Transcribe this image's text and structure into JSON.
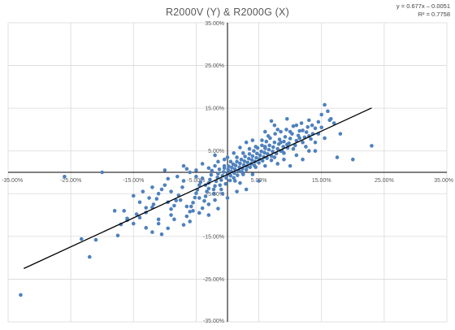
{
  "chart_data": {
    "type": "scatter",
    "title": "R2000V (Y) & R2000G (X)",
    "xlabel": "",
    "ylabel": "",
    "xlim": [
      -0.35,
      0.35
    ],
    "ylim": [
      -0.35,
      0.35
    ],
    "x_ticks": [
      -0.35,
      -0.25,
      -0.15,
      -0.05,
      0.05,
      0.15,
      0.25,
      0.35
    ],
    "x_tick_labels": [
      "-35.00%",
      "-25.00%",
      "-15.00%",
      "-5.00%",
      "5.00%",
      "15.00%",
      "25.00%",
      "35.00%"
    ],
    "y_ticks": [
      0.35,
      0.25,
      0.15,
      0.05,
      -0.05,
      -0.15,
      -0.25,
      -0.35
    ],
    "y_tick_labels": [
      "35.00%",
      "25.00%",
      "15.00%",
      "5.00%",
      "-5.00%",
      "-15.00%",
      "-25.00%",
      "-35.00%"
    ],
    "grid": true,
    "legend": "none",
    "marker_color": "#4F81BD",
    "trendline": {
      "type": "linear",
      "slope": 0.677,
      "intercept": -0.0051,
      "r_squared": 0.7758,
      "color": "#000000",
      "x_range": [
        -0.325,
        0.23
      ]
    },
    "trendline_equation": "y = 0.677x – 0.0051",
    "trendline_r2_label": "R² = 0.7758",
    "series": [
      {
        "points": [
          [
            -0.33,
            -0.287
          ],
          [
            -0.22,
            -0.198
          ],
          [
            -0.233,
            -0.156
          ],
          [
            -0.21,
            -0.158
          ],
          [
            -0.175,
            -0.148
          ],
          [
            -0.17,
            -0.122
          ],
          [
            -0.16,
            -0.112
          ],
          [
            -0.16,
            -0.108
          ],
          [
            -0.145,
            -0.098
          ],
          [
            -0.14,
            -0.106
          ],
          [
            -0.13,
            -0.094
          ],
          [
            -0.13,
            -0.083
          ],
          [
            -0.12,
            -0.082
          ],
          [
            -0.118,
            -0.075
          ],
          [
            -0.113,
            -0.062
          ],
          [
            -0.11,
            -0.11
          ],
          [
            -0.105,
            -0.145
          ],
          [
            -0.095,
            -0.131
          ],
          [
            -0.09,
            -0.086
          ],
          [
            -0.085,
            -0.078
          ],
          [
            -0.082,
            -0.066
          ],
          [
            -0.078,
            -0.054
          ],
          [
            -0.072,
            -0.035
          ],
          [
            -0.07,
            -0.123
          ],
          [
            -0.065,
            -0.103
          ],
          [
            -0.06,
            -0.092
          ],
          [
            -0.058,
            -0.08
          ],
          [
            -0.055,
            -0.071
          ],
          [
            -0.052,
            -0.059
          ],
          [
            -0.05,
            -0.049
          ],
          [
            -0.048,
            -0.041
          ],
          [
            -0.045,
            -0.03
          ],
          [
            -0.043,
            -0.023
          ],
          [
            -0.04,
            -0.014
          ],
          [
            -0.04,
            -0.084
          ],
          [
            -0.037,
            -0.067
          ],
          [
            -0.035,
            -0.056
          ],
          [
            -0.033,
            -0.045
          ],
          [
            -0.03,
            -0.038
          ],
          [
            -0.03,
            -0.025
          ],
          [
            -0.028,
            -0.017
          ],
          [
            -0.026,
            -0.006
          ],
          [
            -0.025,
            0.004
          ],
          [
            -0.022,
            -0.05
          ],
          [
            -0.02,
            -0.032
          ],
          [
            -0.018,
            -0.021
          ],
          [
            -0.016,
            -0.012
          ],
          [
            -0.015,
            -0.003
          ],
          [
            -0.013,
            0.007
          ],
          [
            -0.01,
            -0.04
          ],
          [
            -0.01,
            -0.018
          ],
          [
            -0.008,
            -0.008
          ],
          [
            -0.006,
            0.001
          ],
          [
            -0.005,
            0.01
          ],
          [
            -0.003,
            -0.027
          ],
          [
            -0.002,
            -0.013
          ],
          [
            0.0,
            -0.004
          ],
          [
            0.001,
            0.006
          ],
          [
            0.002,
            0.014
          ],
          [
            0.004,
            -0.019
          ],
          [
            0.005,
            -0.008
          ],
          [
            0.006,
            0.002
          ],
          [
            0.007,
            0.011
          ],
          [
            0.009,
            0.019
          ],
          [
            0.01,
            -0.013
          ],
          [
            0.011,
            -0.002
          ],
          [
            0.012,
            0.007
          ],
          [
            0.013,
            0.016
          ],
          [
            0.015,
            0.025
          ],
          [
            0.016,
            -0.007
          ],
          [
            0.018,
            0.004
          ],
          [
            0.019,
            0.012
          ],
          [
            0.02,
            0.021
          ],
          [
            0.022,
            0.03
          ],
          [
            0.023,
            0.001
          ],
          [
            0.024,
            0.009
          ],
          [
            0.026,
            0.017
          ],
          [
            0.027,
            0.026
          ],
          [
            0.028,
            0.037
          ],
          [
            0.03,
            0.006
          ],
          [
            0.031,
            0.014
          ],
          [
            0.032,
            0.023
          ],
          [
            0.034,
            0.032
          ],
          [
            0.035,
            0.043
          ],
          [
            0.036,
            0.012
          ],
          [
            0.038,
            0.02
          ],
          [
            0.039,
            0.029
          ],
          [
            0.04,
            0.038
          ],
          [
            0.042,
            0.05
          ],
          [
            0.043,
            0.016
          ],
          [
            0.044,
            0.025
          ],
          [
            0.046,
            0.034
          ],
          [
            0.047,
            0.044
          ],
          [
            0.048,
            0.057
          ],
          [
            0.05,
            0.022
          ],
          [
            0.051,
            0.031
          ],
          [
            0.052,
            0.04
          ],
          [
            0.054,
            0.049
          ],
          [
            0.055,
            0.063
          ],
          [
            0.056,
            0.027
          ],
          [
            0.058,
            0.036
          ],
          [
            0.059,
            0.046
          ],
          [
            0.06,
            0.056
          ],
          [
            0.062,
            0.072
          ],
          [
            0.063,
            0.033
          ],
          [
            0.064,
            0.043
          ],
          [
            0.066,
            0.053
          ],
          [
            0.067,
            0.063
          ],
          [
            0.068,
            0.08
          ],
          [
            0.07,
            0.038
          ],
          [
            0.072,
            0.049
          ],
          [
            0.073,
            0.059
          ],
          [
            0.075,
            0.07
          ],
          [
            0.076,
            0.09
          ],
          [
            0.078,
            0.044
          ],
          [
            0.08,
            0.055
          ],
          [
            0.082,
            0.066
          ],
          [
            0.083,
            0.077
          ],
          [
            0.085,
            0.095
          ],
          [
            0.087,
            0.05
          ],
          [
            0.089,
            0.06
          ],
          [
            0.09,
            0.072
          ],
          [
            0.092,
            0.083
          ],
          [
            0.094,
            0.1
          ],
          [
            0.096,
            0.057
          ],
          [
            0.098,
            0.068
          ],
          [
            0.1,
            0.079
          ],
          [
            0.103,
            0.09
          ],
          [
            0.105,
            0.108
          ],
          [
            0.108,
            0.063
          ],
          [
            0.11,
            0.074
          ],
          [
            0.113,
            0.086
          ],
          [
            0.115,
            0.097
          ],
          [
            0.118,
            0.115
          ],
          [
            0.12,
            0.07
          ],
          [
            0.123,
            0.082
          ],
          [
            0.126,
            0.094
          ],
          [
            0.128,
            0.106
          ],
          [
            0.13,
            0.122
          ],
          [
            0.133,
            0.078
          ],
          [
            0.136,
            0.09
          ],
          [
            0.14,
            0.103
          ],
          [
            0.145,
            0.118
          ],
          [
            0.15,
            0.135
          ],
          [
            0.155,
            0.158
          ],
          [
            0.16,
            0.143
          ],
          [
            0.163,
            0.122
          ],
          [
            0.17,
            0.115
          ],
          [
            0.175,
            0.035
          ],
          [
            0.2,
            0.03
          ],
          [
            0.23,
            0.062
          ],
          [
            0.12,
            0.03
          ],
          [
            0.1,
            0.015
          ],
          [
            0.13,
            0.05
          ],
          [
            0.08,
            0.1
          ],
          [
            0.07,
            0.12
          ],
          [
            0.06,
            0.095
          ],
          [
            0.04,
            0.075
          ],
          [
            0.03,
            0.07
          ],
          [
            0.02,
            0.058
          ],
          [
            0.01,
            0.045
          ],
          [
            0.0,
            0.035
          ],
          [
            -0.005,
            0.03
          ],
          [
            -0.015,
            0.025
          ],
          [
            -0.02,
            0.015
          ],
          [
            -0.03,
            0.01
          ],
          [
            -0.05,
            -0.01
          ],
          [
            -0.06,
            0.0
          ],
          [
            -0.07,
            -0.02
          ],
          [
            -0.09,
            -0.045
          ],
          [
            -0.1,
            -0.03
          ],
          [
            -0.11,
            -0.05
          ],
          [
            -0.125,
            -0.06
          ],
          [
            -0.14,
            -0.07
          ],
          [
            -0.1,
            0.005
          ],
          [
            -0.07,
            0.015
          ],
          [
            -0.04,
            0.02
          ],
          [
            -0.11,
            -0.12
          ],
          [
            -0.09,
            -0.1
          ],
          [
            -0.2,
            0.0
          ],
          [
            -0.26,
            -0.01
          ],
          [
            -0.18,
            -0.09
          ],
          [
            0.03,
            -0.04
          ],
          [
            0.05,
            -0.02
          ],
          [
            0.08,
            0.02
          ],
          [
            0.09,
            0.03
          ],
          [
            0.11,
            0.04
          ],
          [
            0.14,
            0.07
          ],
          [
            0.145,
            0.09
          ],
          [
            0.11,
            0.11
          ],
          [
            0.095,
            0.125
          ],
          [
            0.075,
            0.11
          ],
          [
            0.06,
            0.06
          ],
          [
            0.045,
            0.06
          ],
          [
            0.025,
            0.045
          ],
          [
            0.015,
            0.035
          ],
          [
            0.005,
            0.025
          ],
          [
            -0.005,
            0.015
          ],
          [
            -0.012,
            -0.03
          ],
          [
            -0.022,
            -0.04
          ],
          [
            -0.035,
            -0.03
          ],
          [
            -0.045,
            -0.06
          ],
          [
            -0.055,
            -0.09
          ],
          [
            -0.065,
            -0.08
          ],
          [
            -0.075,
            -0.065
          ],
          [
            -0.085,
            -0.11
          ],
          [
            -0.095,
            -0.07
          ],
          [
            -0.02,
            0.04
          ],
          [
            0.035,
            0.055
          ],
          [
            0.055,
            0.075
          ],
          [
            0.065,
            0.085
          ],
          [
            0.085,
            0.07
          ],
          [
            0.1,
            0.095
          ],
          [
            0.12,
            0.098
          ],
          [
            0.135,
            0.11
          ],
          [
            0.15,
            0.105
          ],
          [
            0.165,
            0.125
          ],
          [
            0.18,
            0.09
          ],
          [
            0.155,
            0.08
          ],
          [
            0.14,
            0.05
          ],
          [
            0.125,
            0.06
          ],
          [
            0.105,
            0.055
          ],
          [
            0.09,
            0.045
          ],
          [
            0.07,
            0.028
          ],
          [
            0.045,
            0.012
          ],
          [
            0.025,
            -0.005
          ],
          [
            0.012,
            -0.02
          ],
          [
            -0.008,
            -0.05
          ],
          [
            -0.02,
            -0.065
          ],
          [
            -0.03,
            -0.075
          ],
          [
            -0.045,
            -0.095
          ],
          [
            -0.06,
            -0.115
          ],
          [
            -0.03,
            -0.1
          ],
          [
            -0.015,
            -0.085
          ],
          [
            0.0,
            -0.06
          ],
          [
            0.015,
            -0.045
          ],
          [
            0.02,
            -0.025
          ],
          [
            0.04,
            -0.005
          ],
          [
            0.06,
            0.015
          ],
          [
            0.075,
            0.035
          ],
          [
            0.085,
            0.05
          ],
          [
            0.095,
            0.065
          ],
          [
            0.115,
            0.08
          ],
          [
            0.13,
            0.085
          ],
          [
            -0.05,
            0.005
          ],
          [
            -0.065,
            0.008
          ],
          [
            -0.08,
            -0.01
          ],
          [
            -0.095,
            -0.015
          ],
          [
            -0.105,
            -0.04
          ],
          [
            -0.12,
            -0.035
          ],
          [
            -0.135,
            -0.045
          ],
          [
            -0.15,
            -0.055
          ],
          [
            -0.165,
            -0.09
          ],
          [
            -0.15,
            -0.12
          ],
          [
            -0.13,
            -0.13
          ],
          [
            -0.12,
            -0.14
          ]
        ]
      }
    ]
  }
}
